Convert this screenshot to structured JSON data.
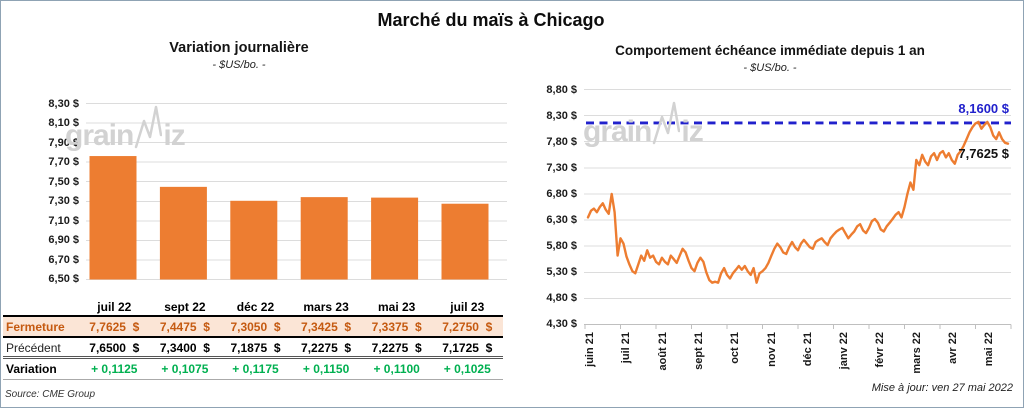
{
  "title": "Marché du maïs à Chicago",
  "watermark": {
    "part1": "grain",
    "part2": "iz"
  },
  "colors": {
    "bar_orange": "#ED7D31",
    "line_orange": "#ED7D31",
    "reference_blue": "#2121CC",
    "close_row_bg": "#FBE5D6",
    "close_row_text": "#C55A11",
    "variation_green": "#00B050",
    "gridline": "#DCDCDC",
    "axis": "#BFBFBF"
  },
  "left": {
    "title": "Variation journalière",
    "subtitle": "- $US/bo. -",
    "source": "Source: CME Group",
    "y_axis": {
      "labels": [
        "8,30 $",
        "8,10 $",
        "7,90 $",
        "7,70 $",
        "7,50 $",
        "7,30 $",
        "7,10 $",
        "6,90 $",
        "6,70 $",
        "6,50 $"
      ]
    },
    "table": {
      "columns": [
        "juil 22",
        "sept 22",
        "déc 22",
        "mars 23",
        "mai 23",
        "juil 23"
      ],
      "rows": [
        {
          "label": "Fermeture",
          "values": [
            "7,7625  $",
            "7,4475  $",
            "7,3050  $",
            "7,3425  $",
            "7,3375  $",
            "7,2750  $"
          ]
        },
        {
          "label": "Précédent",
          "values": [
            "7,6500  $",
            "7,3400  $",
            "7,1875  $",
            "7,2275  $",
            "7,2275  $",
            "7,1725  $"
          ]
        },
        {
          "label": "Variation",
          "values": [
            "+ 0,1125",
            "+ 0,1075",
            "+ 0,1175",
            "+ 0,1150",
            "+ 0,1100",
            "+ 0,1025"
          ]
        }
      ]
    }
  },
  "right": {
    "title": "Comportement échéance immédiate depuis 1 an",
    "subtitle": "- $US/bo. -",
    "update_note": "Mise à jour: ven 27 mai 2022",
    "y_axis": {
      "labels": [
        "8,80 $",
        "8,30 $",
        "7,80 $",
        "7,30 $",
        "6,80 $",
        "6,30 $",
        "5,80 $",
        "5,30 $",
        "4,80 $",
        "4,30 $"
      ]
    },
    "x_axis": {
      "labels": [
        "juin 21",
        "juil 21",
        "août 21",
        "sept 21",
        "oct 21",
        "nov 21",
        "déc 21",
        "janv 22",
        "févr 22",
        "mars 22",
        "avr 22",
        "mai 22"
      ]
    },
    "reference_line": {
      "value": 8.16,
      "label": "8,1600 $"
    },
    "last_point": {
      "value": 7.7625,
      "label": "7,7625 $"
    }
  },
  "chart_data": [
    {
      "type": "bar",
      "title": "Variation journalière",
      "ylabel": "$US/bo.",
      "categories": [
        "juil 22",
        "sept 22",
        "déc 22",
        "mars 23",
        "mai 23",
        "juil 23"
      ],
      "values": [
        7.7625,
        7.4475,
        7.305,
        7.3425,
        7.3375,
        7.275
      ],
      "ylim": [
        6.5,
        8.3
      ],
      "ytick_step": 0.2,
      "grid": true,
      "bar_color": "#ED7D31"
    },
    {
      "type": "line",
      "title": "Comportement échéance immédiate depuis 1 an",
      "ylabel": "$US/bo.",
      "x_categories": [
        "juin 21",
        "juil 21",
        "août 21",
        "sept 21",
        "oct 21",
        "nov 21",
        "déc 21",
        "janv 22",
        "févr 22",
        "mars 22",
        "avr 22",
        "mai 22"
      ],
      "values": [
        6.35,
        6.48,
        6.52,
        6.45,
        6.55,
        6.62,
        6.5,
        6.42,
        6.8,
        6.45,
        5.62,
        5.95,
        5.85,
        5.6,
        5.45,
        5.32,
        5.28,
        5.45,
        5.62,
        5.52,
        5.72,
        5.58,
        5.62,
        5.5,
        5.45,
        5.58,
        5.5,
        5.45,
        5.62,
        5.55,
        5.48,
        5.62,
        5.75,
        5.68,
        5.52,
        5.38,
        5.32,
        5.48,
        5.58,
        5.5,
        5.3,
        5.15,
        5.1,
        5.12,
        5.1,
        5.28,
        5.38,
        5.25,
        5.18,
        5.28,
        5.35,
        5.42,
        5.35,
        5.42,
        5.32,
        5.25,
        5.38,
        5.1,
        5.28,
        5.32,
        5.38,
        5.48,
        5.62,
        5.75,
        5.85,
        5.78,
        5.68,
        5.65,
        5.78,
        5.88,
        5.78,
        5.72,
        5.85,
        5.92,
        5.85,
        5.78,
        5.75,
        5.88,
        5.92,
        5.95,
        5.88,
        5.82,
        5.95,
        6.02,
        6.08,
        6.12,
        6.15,
        6.05,
        5.95,
        6.02,
        6.08,
        6.18,
        6.22,
        6.1,
        6.05,
        6.15,
        6.28,
        6.32,
        6.25,
        6.12,
        6.08,
        6.18,
        6.25,
        6.32,
        6.4,
        6.45,
        6.35,
        6.55,
        6.8,
        7.02,
        6.88,
        7.45,
        7.35,
        7.55,
        7.42,
        7.35,
        7.52,
        7.58,
        7.45,
        7.58,
        7.62,
        7.5,
        7.58,
        7.45,
        7.38,
        7.55,
        7.62,
        7.72,
        7.85,
        7.98,
        8.08,
        8.15,
        8.18,
        8.05,
        8.12,
        8.18,
        8.08,
        7.92,
        7.85,
        7.98,
        7.85,
        7.78,
        7.7625
      ],
      "ylim": [
        4.3,
        8.8
      ],
      "ytick_step": 0.5,
      "grid": true,
      "line_color": "#ED7D31",
      "reference_line": 8.16,
      "last_value": 7.7625
    }
  ]
}
